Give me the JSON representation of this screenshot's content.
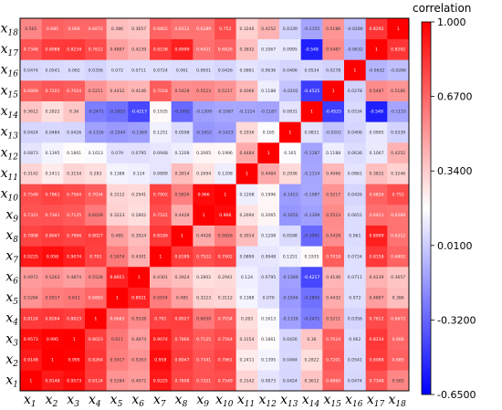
{
  "chart_data": {
    "type": "heatmap",
    "colorbar_title": "correlation",
    "colorbar_ticks": [
      "1.000",
      "0.6700",
      "0.3400",
      "0.0100",
      "-0.3200",
      "-0.6500"
    ],
    "colorbar_tick_values": [
      1.0,
      0.67,
      0.34,
      0.01,
      -0.32,
      -0.65
    ],
    "vmin": -0.65,
    "vmax": 1.0,
    "colors": {
      "low": "#0000ff",
      "mid": "#ffffff",
      "high": "#ff0000"
    },
    "x_labels": [
      "x1",
      "x2",
      "x3",
      "x4",
      "x5",
      "x6",
      "x7",
      "x8",
      "x9",
      "x10",
      "x11",
      "x12",
      "x13",
      "x14",
      "x15",
      "x16",
      "x17",
      "x18"
    ],
    "y_labels_bottom_to_top": [
      "x1",
      "x2",
      "x3",
      "x4",
      "x5",
      "x6",
      "x7",
      "x8",
      "x9",
      "x10",
      "x11",
      "x12",
      "x13",
      "x14",
      "x15",
      "x16",
      "x17",
      "x18"
    ],
    "matrix": [
      [
        1,
        0.9148,
        0.9573,
        0.8124,
        0.5284,
        0.4972,
        0.9225,
        0.7808,
        0.7321,
        0.7549,
        0.3142,
        0.0873,
        0.0424,
        0.3612,
        0.6869,
        0.0474,
        0.7348,
        0.565
      ],
      [
        0.9148,
        1,
        0.995,
        0.8264,
        0.5917,
        0.5263,
        0.958,
        0.8047,
        0.7341,
        0.7861,
        0.2411,
        0.1395,
        0.0484,
        0.2822,
        0.7201,
        0.0541,
        0.8088,
        0.685
      ],
      [
        0.9573,
        0.995,
        1,
        0.8023,
        0.611,
        0.4874,
        0.9074,
        0.7866,
        0.7125,
        0.7564,
        0.3154,
        0.1861,
        0.0426,
        0.36,
        0.7024,
        0.062,
        0.8234,
        0.666
      ],
      [
        0.8124,
        0.8264,
        0.8023,
        1,
        0.6683,
        0.5528,
        0.791,
        0.8027,
        0.6039,
        0.7034,
        0.283,
        0.1613,
        -0.1316,
        -0.2471,
        0.5211,
        0.0356,
        0.7612,
        0.6672
      ],
      [
        0.5284,
        0.5917,
        0.611,
        0.6683,
        1,
        0.8921,
        0.5974,
        0.485,
        0.3223,
        0.3112,
        0.1388,
        0.079,
        -0.1544,
        -0.2855,
        0.4432,
        0.072,
        0.4897,
        0.386
      ],
      [
        0.4972,
        0.5263,
        0.4874,
        0.5528,
        0.8921,
        1,
        0.4301,
        0.3924,
        0.2802,
        0.2941,
        0.124,
        0.0795,
        -0.1369,
        -0.4217,
        0.4146,
        0.0711,
        0.4239,
        0.3657
      ],
      [
        0.9225,
        0.958,
        0.9074,
        0.791,
        0.5974,
        0.4301,
        1,
        0.8189,
        0.7522,
        0.7902,
        0.0899,
        0.0948,
        0.1251,
        0.1935,
        0.7018,
        0.0724,
        0.8158,
        0.6802
      ],
      [
        0.7808,
        0.8047,
        0.7866,
        0.8027,
        0.485,
        0.3924,
        0.8189,
        1,
        0.4428,
        0.5826,
        0.3914,
        0.1208,
        0.0598,
        -0.3091,
        0.5428,
        0.061,
        0.8999,
        0.6312
      ],
      [
        0.7321,
        0.7341,
        0.7125,
        0.6039,
        0.3223,
        0.2802,
        0.7522,
        0.4428,
        1,
        0.966,
        0.2694,
        0.2065,
        -0.1652,
        -0.1309,
        0.5523,
        0.0651,
        0.6421,
        0.6289
      ],
      [
        0.7549,
        0.7861,
        0.7564,
        0.7034,
        0.3112,
        0.2941,
        0.7902,
        0.5826,
        0.966,
        1,
        0.1208,
        0.1996,
        -0.1423,
        -0.1087,
        0.5217,
        0.0426,
        0.6826,
        0.752
      ],
      [
        0.3142,
        0.2411,
        0.3154,
        0.283,
        0.1388,
        0.124,
        0.0899,
        0.3914,
        0.2694,
        0.1208,
        1,
        0.4484,
        0.2936,
        -0.1114,
        0.4066,
        0.0861,
        0.3832,
        0.3246
      ],
      [
        0.0873,
        0.1395,
        0.1861,
        0.1613,
        0.079,
        0.0795,
        0.0948,
        0.1208,
        0.2065,
        0.1996,
        0.4484,
        1,
        0.165,
        -0.1187,
        0.1188,
        0.0636,
        0.1067,
        0.4252
      ],
      [
        0.0424,
        0.0484,
        0.0426,
        -0.1316,
        -0.1544,
        -0.1369,
        0.1251,
        0.0598,
        -0.1652,
        -0.1423,
        0.2936,
        0.165,
        1,
        0.0831,
        -0.0202,
        0.0406,
        0.0995,
        0.0339
      ],
      [
        0.3612,
        0.2822,
        0.36,
        -0.2471,
        -0.2855,
        -0.4217,
        0.1935,
        -0.3091,
        -0.1309,
        -0.1087,
        -0.1114,
        -0.1187,
        0.0831,
        1,
        -0.4525,
        0.0534,
        -0.548,
        -0.1155
      ],
      [
        0.6869,
        0.7201,
        0.7024,
        0.5211,
        0.4432,
        0.4146,
        0.7018,
        0.5428,
        0.5523,
        0.5217,
        0.4066,
        0.1188,
        -0.0202,
        -0.4525,
        1,
        0.0278,
        0.5487,
        0.5186
      ],
      [
        0.0474,
        0.0541,
        0.062,
        0.0356,
        0.072,
        0.0711,
        0.0724,
        0.061,
        0.0651,
        0.0426,
        0.0861,
        0.0636,
        0.0406,
        0.0534,
        0.0278,
        1,
        -0.0632,
        -0.0286
      ],
      [
        0.7348,
        0.8088,
        0.8234,
        0.7612,
        0.4897,
        0.4239,
        0.8158,
        0.8999,
        0.6421,
        0.6826,
        0.3832,
        0.1067,
        0.0995,
        -0.548,
        0.5487,
        -0.0632,
        1,
        0.8292
      ],
      [
        0.565,
        0.685,
        0.666,
        0.6672,
        0.386,
        0.3657,
        0.6802,
        0.6312,
        0.6289,
        0.752,
        0.3246,
        0.4252,
        0.0339,
        -0.1155,
        0.5186,
        -0.0286,
        0.8292,
        1
      ]
    ]
  }
}
